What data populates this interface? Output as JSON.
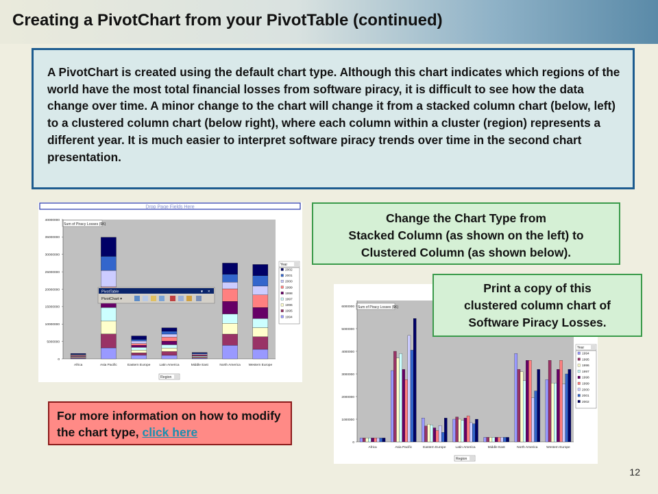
{
  "slide": {
    "title": "Creating a PivotChart from your PivotTable (continued)",
    "intro": "A PivotChart is created using the default chart type.  Although this chart indicates which regions of the world have the most total financial losses from software piracy, it is difficult to see how the data change over time.  A minor change to the chart will change it from a stacked column chart (below, left) to a clustered column chart (below right), where each column within a cluster (region) represents a different year. It is much easier to interpret software piracy trends over time in the second chart presentation.",
    "change_box": {
      "line1": "Change the Chart Type from",
      "line2": "Stacked Column (as shown on the left) to",
      "line3": "Clustered Column (as shown below)."
    },
    "print_box": {
      "line1": "Print a copy of this",
      "line2": "clustered column chart of",
      "line3": "Software Piracy Losses."
    },
    "info_box": {
      "text": "For more information on how to modify the chart type, ",
      "link": "click here"
    },
    "page_number": "12"
  },
  "stacked_chart": {
    "drop_zone": "Drop Page Fields Here",
    "data_field": "Sum of Piracy Losses ($K)",
    "legend_field": "Year",
    "axis_field": "Region",
    "toolbar_title": "PivotTable",
    "toolbar_menu": "PivotChart ▾",
    "y_ticks": [
      "40000000",
      "35000000",
      "30000000",
      "25000000",
      "20000000",
      "15000000",
      "10000000",
      "5000000",
      "0"
    ]
  },
  "clustered_chart": {
    "data_field": "Sum of Piracy Losses ($K)",
    "legend_field": "Year",
    "axis_field": "Region",
    "y_ticks": [
      "6000000",
      "5000000",
      "4000000",
      "3000000",
      "2000000",
      "1000000",
      "0"
    ]
  },
  "chart_data": [
    {
      "type": "bar",
      "stacked": true,
      "categories": [
        "Africa",
        "Asia Pacific",
        "Eastern Europe",
        "Latin America",
        "Middle East",
        "North America",
        "Western Europe"
      ],
      "ylim": [
        0,
        40000000
      ],
      "legend_title": "Year",
      "legend_position": "right",
      "grid": false,
      "series": [
        {
          "name": "2002",
          "color": "#000066",
          "values": [
            170000,
            5450000,
            1050000,
            1000000,
            200000,
            3200000,
            3200000
          ]
        },
        {
          "name": "2001",
          "color": "#3366cc",
          "values": [
            170000,
            4050000,
            420000,
            800000,
            200000,
            2250000,
            3000000
          ]
        },
        {
          "name": "2000",
          "color": "#ccccff",
          "values": [
            170000,
            4700000,
            720000,
            850000,
            200000,
            1950000,
            2550000
          ]
        },
        {
          "name": "1999",
          "color": "#ff8080",
          "values": [
            170000,
            2750000,
            500000,
            1150000,
            200000,
            3600000,
            3600000
          ]
        },
        {
          "name": "1998",
          "color": "#660066",
          "values": [
            170000,
            3200000,
            620000,
            1050000,
            200000,
            3600000,
            3200000
          ]
        },
        {
          "name": "1997",
          "color": "#ccffff",
          "values": [
            170000,
            3900000,
            750000,
            950000,
            200000,
            2700000,
            2600000
          ]
        },
        {
          "name": "1996",
          "color": "#ffffcc",
          "values": [
            170000,
            3700000,
            780000,
            1000000,
            200000,
            3100000,
            2600000
          ]
        },
        {
          "name": "1995",
          "color": "#993366",
          "values": [
            170000,
            4000000,
            700000,
            1100000,
            200000,
            3200000,
            3600000
          ]
        },
        {
          "name": "1994",
          "color": "#9999ff",
          "values": [
            170000,
            3150000,
            1050000,
            1000000,
            200000,
            3900000,
            2750000
          ]
        }
      ]
    },
    {
      "type": "bar",
      "stacked": false,
      "categories": [
        "Africa",
        "Asia Pacific",
        "Eastern Europe",
        "Latin America",
        "Middle East",
        "North America",
        "Western Europe"
      ],
      "ylim": [
        0,
        6000000
      ],
      "legend_title": "Year",
      "legend_position": "right",
      "grid": false,
      "series": [
        {
          "name": "1994",
          "color": "#9999ff",
          "values": [
            170000,
            3150000,
            1050000,
            1000000,
            200000,
            3900000,
            2750000
          ]
        },
        {
          "name": "1995",
          "color": "#993366",
          "values": [
            170000,
            4000000,
            700000,
            1100000,
            200000,
            3200000,
            3600000
          ]
        },
        {
          "name": "1996",
          "color": "#ffffcc",
          "values": [
            170000,
            3700000,
            780000,
            1000000,
            200000,
            3100000,
            2600000
          ]
        },
        {
          "name": "1997",
          "color": "#ccffff",
          "values": [
            170000,
            3900000,
            750000,
            950000,
            200000,
            2700000,
            2600000
          ]
        },
        {
          "name": "1998",
          "color": "#660066",
          "values": [
            170000,
            3200000,
            620000,
            1050000,
            200000,
            3600000,
            3200000
          ]
        },
        {
          "name": "1999",
          "color": "#ff8080",
          "values": [
            170000,
            2750000,
            500000,
            1150000,
            200000,
            3600000,
            3600000
          ]
        },
        {
          "name": "2000",
          "color": "#ccccff",
          "values": [
            170000,
            4700000,
            720000,
            850000,
            200000,
            1950000,
            2550000
          ]
        },
        {
          "name": "2001",
          "color": "#3366cc",
          "values": [
            170000,
            4050000,
            420000,
            800000,
            200000,
            2250000,
            3000000
          ]
        },
        {
          "name": "2002",
          "color": "#000066",
          "values": [
            170000,
            5450000,
            1050000,
            1000000,
            200000,
            3200000,
            3200000
          ]
        }
      ]
    }
  ]
}
